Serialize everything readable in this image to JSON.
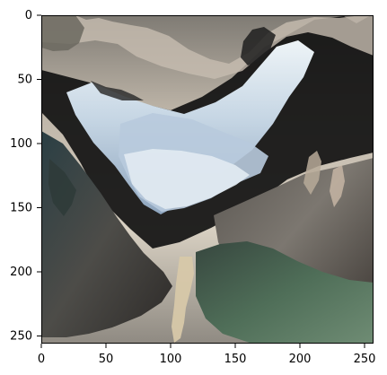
{
  "image_plot": {
    "x_ticks": [
      "0",
      "50",
      "100",
      "150",
      "200",
      "250"
    ],
    "y_ticks": [
      "0",
      "50",
      "100",
      "150",
      "200",
      "250"
    ],
    "x_range": [
      0,
      256
    ],
    "y_range": [
      0,
      256
    ],
    "y_inverted": true,
    "colors": {
      "frame": "#000000",
      "background": "#ffffff",
      "sky_light": "#d8d0c2",
      "sky_mid": "#a7a095",
      "sky_dark": "#6d6a66",
      "glacier_light": "#eef4f7",
      "glacier_mid": "#c6d6e4",
      "glacier_shadow": "#8ea5be",
      "rock_dark": "#2a2a2a",
      "rock_mid": "#5d5a55",
      "vegetation_dark": "#2f3f36",
      "vegetation_green": "#4f6e58",
      "waterfall": "#d7c8a9"
    }
  }
}
